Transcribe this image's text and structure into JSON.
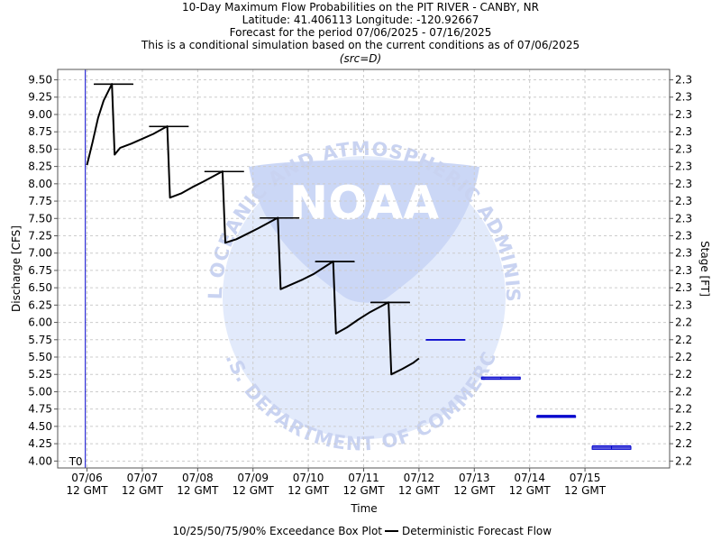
{
  "chart_data": {
    "type": "line",
    "title": [
      "10-Day Maximum Flow Probabilities on the PIT RIVER - CANBY, NR",
      "Latitude: 41.406113 Longitude: -120.92667",
      "Forecast for the period 07/06/2025 - 07/16/2025",
      "This is a conditional simulation based on the current conditions as of 07/06/2025",
      "(src=D)"
    ],
    "xlabel": "Time",
    "ylabel_left": "Discharge [CFS]",
    "ylabel_right": "Stage [FT]",
    "ylim": [
      3.9,
      9.65
    ],
    "y_ticks": [
      "4.00",
      "4.25",
      "4.50",
      "4.75",
      "5.00",
      "5.25",
      "5.50",
      "5.75",
      "6.00",
      "6.25",
      "6.50",
      "6.75",
      "7.00",
      "7.25",
      "7.50",
      "7.75",
      "8.00",
      "8.25",
      "8.50",
      "8.75",
      "9.00",
      "9.25",
      "9.50"
    ],
    "right_ticks": [
      "2.2",
      "2.2",
      "2.2",
      "2.2",
      "2.2",
      "2.2",
      "2.2",
      "2.2",
      "2.2",
      "2.3",
      "2.3",
      "2.3",
      "2.3",
      "2.3",
      "2.3",
      "2.3",
      "2.3",
      "2.3",
      "2.3",
      "2.3",
      "2.3",
      "2.3",
      "2.3"
    ],
    "x_ticks": [
      {
        "day": 0,
        "line1": "07/06",
        "line2": "12 GMT"
      },
      {
        "day": 1,
        "line1": "07/07",
        "line2": "12 GMT"
      },
      {
        "day": 2,
        "line1": "07/08",
        "line2": "12 GMT"
      },
      {
        "day": 3,
        "line1": "07/09",
        "line2": "12 GMT"
      },
      {
        "day": 4,
        "line1": "07/10",
        "line2": "12 GMT"
      },
      {
        "day": 5,
        "line1": "07/11",
        "line2": "12 GMT"
      },
      {
        "day": 6,
        "line1": "07/12",
        "line2": "12 GMT"
      },
      {
        "day": 7,
        "line1": "07/13",
        "line2": "12 GMT"
      },
      {
        "day": 8,
        "line1": "07/14",
        "line2": "12 GMT"
      },
      {
        "day": 9,
        "line1": "07/15",
        "line2": "12 GMT"
      }
    ],
    "xlim_days": [
      -0.53,
      10.53
    ],
    "t0_day": -0.03,
    "t0_label": "T0",
    "grid": true,
    "colors": {
      "deterministic": "#000000",
      "boxplot": "#0000cc",
      "t0_line": "#0000cc",
      "grid": "#cccccc"
    },
    "series": [
      {
        "name": "Deterministic Forecast Flow",
        "points": [
          [
            0.0,
            8.27
          ],
          [
            0.1,
            8.6
          ],
          [
            0.2,
            8.95
          ],
          [
            0.3,
            9.2
          ],
          [
            0.45,
            9.44
          ],
          [
            0.5,
            8.42
          ],
          [
            0.6,
            8.52
          ],
          [
            0.8,
            8.58
          ],
          [
            1.0,
            8.65
          ],
          [
            1.2,
            8.72
          ],
          [
            1.45,
            8.83
          ],
          [
            1.5,
            7.8
          ],
          [
            1.7,
            7.86
          ],
          [
            1.9,
            7.95
          ],
          [
            2.1,
            8.03
          ],
          [
            2.45,
            8.18
          ],
          [
            2.5,
            7.15
          ],
          [
            2.7,
            7.2
          ],
          [
            2.9,
            7.28
          ],
          [
            3.1,
            7.36
          ],
          [
            3.45,
            7.51
          ],
          [
            3.5,
            6.48
          ],
          [
            3.7,
            6.55
          ],
          [
            3.9,
            6.62
          ],
          [
            4.1,
            6.7
          ],
          [
            4.45,
            6.88
          ],
          [
            4.5,
            5.84
          ],
          [
            4.7,
            5.93
          ],
          [
            4.9,
            6.04
          ],
          [
            5.1,
            6.14
          ],
          [
            5.45,
            6.29
          ],
          [
            5.5,
            5.25
          ],
          [
            5.7,
            5.33
          ],
          [
            5.9,
            5.42
          ],
          [
            6.0,
            5.48
          ]
        ]
      }
    ],
    "boxplots": [
      {
        "day_start": 0.13,
        "day_end": 0.83,
        "p10": 9.44,
        "p25": 9.44,
        "p50": 9.44,
        "p75": 9.44,
        "p90": 9.44,
        "color": "black"
      },
      {
        "day_start": 1.13,
        "day_end": 1.83,
        "p10": 8.83,
        "p25": 8.83,
        "p50": 8.83,
        "p75": 8.83,
        "p90": 8.83,
        "color": "black"
      },
      {
        "day_start": 2.13,
        "day_end": 2.83,
        "p10": 8.18,
        "p25": 8.18,
        "p50": 8.18,
        "p75": 8.18,
        "p90": 8.18,
        "color": "black"
      },
      {
        "day_start": 3.13,
        "day_end": 3.83,
        "p10": 7.51,
        "p25": 7.51,
        "p50": 7.51,
        "p75": 7.51,
        "p90": 7.51,
        "color": "black"
      },
      {
        "day_start": 4.13,
        "day_end": 4.83,
        "p10": 6.88,
        "p25": 6.88,
        "p50": 6.88,
        "p75": 6.88,
        "p90": 6.88,
        "color": "black"
      },
      {
        "day_start": 5.13,
        "day_end": 5.83,
        "p10": 6.29,
        "p25": 6.29,
        "p50": 6.29,
        "p75": 6.29,
        "p90": 6.29,
        "color": "black"
      },
      {
        "day_start": 6.13,
        "day_end": 6.83,
        "p10": 5.75,
        "p25": 5.75,
        "p50": 5.75,
        "p75": 5.75,
        "p90": 5.75,
        "color": "blue"
      },
      {
        "day_start": 7.13,
        "day_end": 7.83,
        "p10": 5.18,
        "p25": 5.18,
        "p50": 5.19,
        "p75": 5.21,
        "p90": 5.21,
        "color": "blue"
      },
      {
        "day_start": 8.13,
        "day_end": 8.83,
        "p10": 4.63,
        "p25": 4.63,
        "p50": 4.64,
        "p75": 4.65,
        "p90": 4.66,
        "color": "blue"
      },
      {
        "day_start": 9.13,
        "day_end": 9.83,
        "p10": 4.17,
        "p25": 4.17,
        "p50": 4.19,
        "p75": 4.21,
        "p90": 4.22,
        "color": "blue"
      }
    ],
    "legend": {
      "placement": "bottom",
      "items": [
        "10/25/50/75/90% Exceedance Box Plot",
        "Deterministic Forecast Flow"
      ]
    },
    "watermark": {
      "text_top": "NATIONAL OCEANIC AND ATMOSPHERIC ADMINISTRATION",
      "text_center": "NOAA",
      "text_bottom": "U.S. DEPARTMENT OF COMMERCE"
    }
  }
}
